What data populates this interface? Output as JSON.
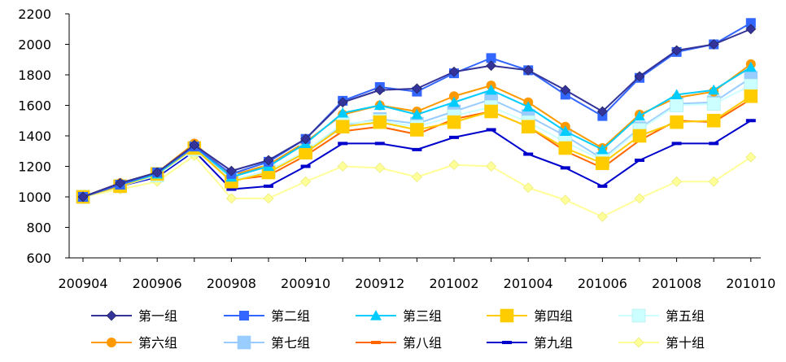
{
  "chart_data": {
    "type": "line",
    "title": "",
    "xlabel": "",
    "ylabel": "",
    "ylim": [
      600,
      2200
    ],
    "yticks": [
      600,
      800,
      1000,
      1200,
      1400,
      1600,
      1800,
      2000,
      2200
    ],
    "grid": false,
    "legend_position": "bottom",
    "x": [
      "200904",
      "200905",
      "200906",
      "200907",
      "200908",
      "200909",
      "200910",
      "200911",
      "200912",
      "201001",
      "201002",
      "201003",
      "201004",
      "201005",
      "201006",
      "201007",
      "201008",
      "201009",
      "201010"
    ],
    "xtick_labels": [
      "200904",
      "200906",
      "200908",
      "200910",
      "200912",
      "201002",
      "201004",
      "201006",
      "201008",
      "201010"
    ],
    "series": [
      {
        "name": "第一组",
        "color": "#333399",
        "marker": "diamond",
        "values": [
          1000,
          1090,
          1160,
          1340,
          1170,
          1240,
          1380,
          1620,
          1700,
          1710,
          1820,
          1860,
          1830,
          1700,
          1560,
          1790,
          1960,
          2000,
          2100
        ]
      },
      {
        "name": "第二组",
        "color": "#3366FF",
        "marker": "square",
        "values": [
          1000,
          1080,
          1160,
          1330,
          1150,
          1230,
          1380,
          1630,
          1720,
          1690,
          1810,
          1910,
          1830,
          1670,
          1530,
          1780,
          1950,
          2000,
          2140
        ]
      },
      {
        "name": "第三组",
        "color": "#00CCFF",
        "marker": "triangle",
        "values": [
          1000,
          1080,
          1150,
          1330,
          1130,
          1200,
          1350,
          1550,
          1600,
          1540,
          1620,
          1700,
          1590,
          1430,
          1310,
          1530,
          1670,
          1700,
          1850
        ]
      },
      {
        "name": "第四组",
        "color": "#FFCC00",
        "marker": "big-square",
        "values": [
          1000,
          1070,
          1150,
          1320,
          1100,
          1160,
          1290,
          1460,
          1490,
          1440,
          1490,
          1560,
          1460,
          1320,
          1220,
          1400,
          1490,
          1500,
          1660
        ]
      },
      {
        "name": "第五组",
        "color": "#CCFFFF",
        "marker": "big-square",
        "values": [
          1000,
          1070,
          1140,
          1310,
          1110,
          1170,
          1300,
          1480,
          1500,
          1460,
          1530,
          1590,
          1490,
          1360,
          1240,
          1440,
          1600,
          1610,
          1730
        ]
      },
      {
        "name": "第六组",
        "color": "#FF9900",
        "marker": "circle",
        "values": [
          1000,
          1090,
          1160,
          1350,
          1140,
          1210,
          1360,
          1540,
          1600,
          1560,
          1660,
          1730,
          1620,
          1460,
          1320,
          1540,
          1650,
          1690,
          1870
        ]
      },
      {
        "name": "第七组",
        "color": "#99CCFF",
        "marker": "big-square",
        "values": [
          1000,
          1070,
          1150,
          1320,
          1110,
          1170,
          1290,
          1470,
          1510,
          1480,
          1560,
          1640,
          1530,
          1400,
          1250,
          1450,
          1610,
          1620,
          1780
        ]
      },
      {
        "name": "第八组",
        "color": "#FF6600",
        "marker": "dash",
        "values": [
          1000,
          1080,
          1140,
          1320,
          1110,
          1140,
          1270,
          1430,
          1460,
          1410,
          1510,
          1560,
          1460,
          1300,
          1190,
          1370,
          1500,
          1490,
          1640
        ]
      },
      {
        "name": "第九组",
        "color": "#0000CC",
        "marker": "dash",
        "values": [
          1000,
          1070,
          1130,
          1300,
          1050,
          1070,
          1200,
          1350,
          1350,
          1310,
          1390,
          1440,
          1280,
          1190,
          1070,
          1240,
          1350,
          1350,
          1500
        ]
      },
      {
        "name": "第十组",
        "color": "#FFFF99",
        "marker": "diamond",
        "values": [
          1000,
          1050,
          1100,
          1270,
          990,
          990,
          1100,
          1200,
          1190,
          1130,
          1210,
          1200,
          1060,
          980,
          870,
          990,
          1100,
          1100,
          1260
        ]
      }
    ]
  }
}
